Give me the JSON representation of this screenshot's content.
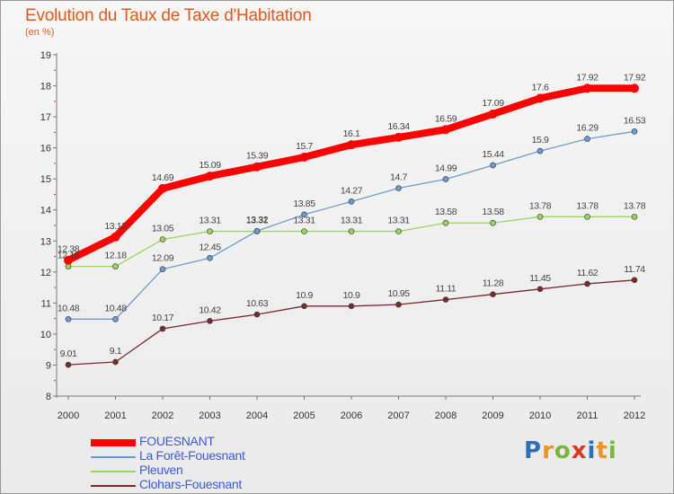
{
  "header": {
    "title": "Evolution du Taux de Taxe d'Habitation",
    "subtitle": "(en %)"
  },
  "logo": {
    "letters": [
      "P",
      "r",
      "o",
      "x",
      "i",
      "t",
      "i"
    ],
    "colors": [
      "#2f6fb5",
      "#e8942b",
      "#7bb63a",
      "#d83a2a",
      "#2f6fb5",
      "#e8942b",
      "#7bb63a"
    ]
  },
  "chart_data": {
    "type": "line",
    "title": "Evolution du Taux de Taxe d'Habitation",
    "ylabel": "(en %)",
    "xlabel": "",
    "ylim": [
      8,
      19
    ],
    "y_ticks": [
      8,
      9,
      10,
      11,
      12,
      13,
      14,
      15,
      16,
      17,
      18,
      19
    ],
    "grid": false,
    "legend_position": "bottom-left",
    "categories": [
      "2000",
      "2001",
      "2002",
      "2003",
      "2004",
      "2005",
      "2006",
      "2007",
      "2008",
      "2009",
      "2010",
      "2011",
      "2012"
    ],
    "series": [
      {
        "name": "FOUESNANT",
        "color": "#ff0000",
        "values": [
          12.38,
          13.13,
          14.69,
          15.09,
          15.39,
          15.7,
          16.1,
          16.34,
          16.59,
          17.09,
          17.6,
          17.92,
          17.92
        ],
        "labels": [
          "12.38",
          "13.13",
          "14.69",
          "15.09",
          "15.39",
          "15.7",
          "16.1",
          "16.34",
          "16.59",
          "17.09",
          "17.6",
          "17.92",
          "17.92"
        ]
      },
      {
        "name": "La Forêt-Fouesnant",
        "color": "#6a9cd1",
        "values": [
          10.48,
          10.48,
          12.09,
          12.45,
          13.32,
          13.85,
          14.27,
          14.7,
          14.99,
          15.44,
          15.9,
          16.29,
          16.53
        ],
        "labels": [
          "10.48",
          "10.48",
          "12.09",
          "12.45",
          "13.32",
          "13.85",
          "14.27",
          "14.7",
          "14.99",
          "15.44",
          "15.9",
          "16.29",
          "16.53"
        ]
      },
      {
        "name": "Pleuven",
        "color": "#9ad65c",
        "values": [
          12.18,
          12.18,
          13.05,
          13.31,
          13.31,
          13.31,
          13.31,
          13.31,
          13.58,
          13.58,
          13.78,
          13.78,
          13.78
        ],
        "labels": [
          "12.18",
          "12.18",
          "13.05",
          "13.31",
          "13.31",
          "13.31",
          "13.31",
          "13.31",
          "13.58",
          "13.58",
          "13.78",
          "13.78",
          "13.78"
        ]
      },
      {
        "name": "Clohars-Fouesnant",
        "color": "#7a2a2a",
        "values": [
          9.01,
          9.1,
          10.17,
          10.42,
          10.63,
          10.9,
          10.9,
          10.95,
          11.11,
          11.28,
          11.45,
          11.62,
          11.74
        ],
        "labels": [
          "9.01",
          "9.1",
          "10.17",
          "10.42",
          "10.63",
          "10.9",
          "10.9",
          "10.95",
          "11.11",
          "11.28",
          "11.45",
          "11.62",
          "11.74"
        ]
      }
    ]
  }
}
